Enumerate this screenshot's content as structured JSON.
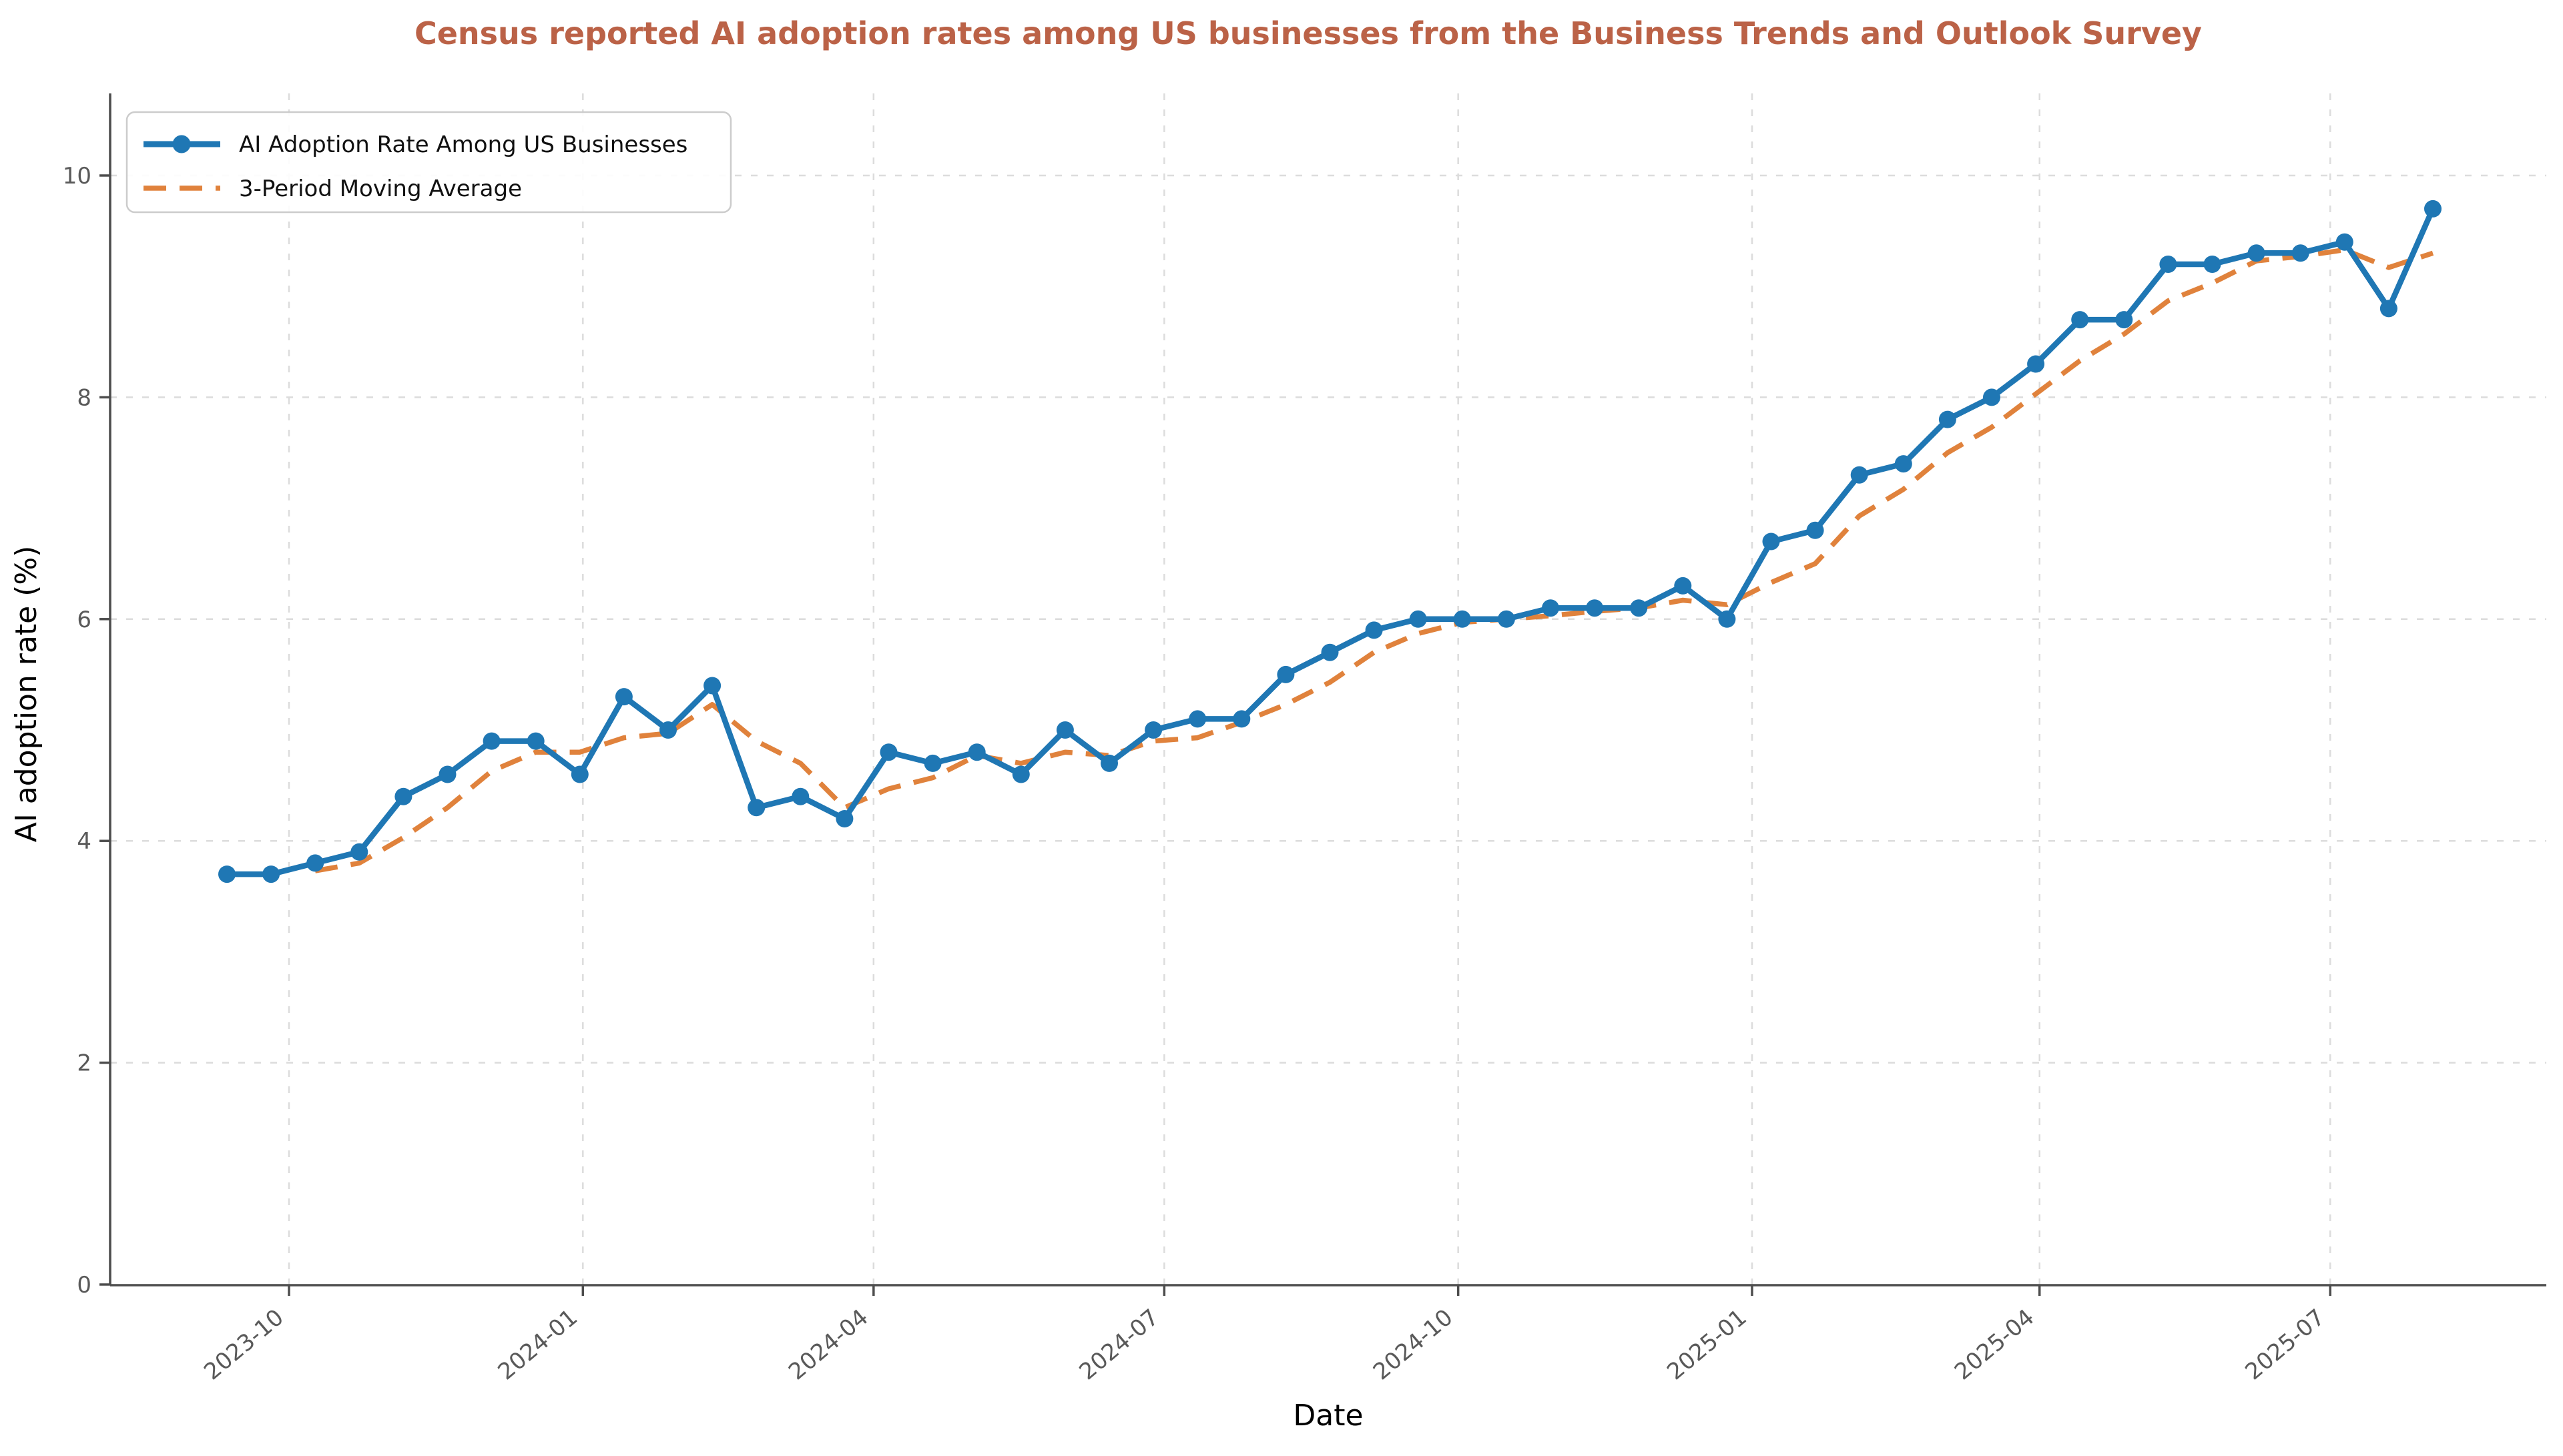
{
  "chart_data": {
    "type": "line",
    "title": "Census reported AI adoption rates among US businesses from the Business Trends and Outlook Survey",
    "title_color": "#bb6247",
    "xlabel": "Date",
    "ylabel": "AI adoption rate (%)",
    "ylim": [
      0,
      10.7
    ],
    "grid": true,
    "grid_style": "light-dashed",
    "legend_position": "upper-left",
    "x_tick_labels": [
      "2023-10",
      "2024-01",
      "2024-04",
      "2024-07",
      "2024-10",
      "2025-01",
      "2025-04",
      "2025-07"
    ],
    "y_ticks": [
      0,
      2,
      4,
      6,
      8,
      10
    ],
    "dates": [
      "2023-09-11",
      "2023-09-25",
      "2023-10-09",
      "2023-10-23",
      "2023-11-06",
      "2023-11-20",
      "2023-12-04",
      "2023-12-18",
      "2024-01-01",
      "2024-01-15",
      "2024-01-29",
      "2024-02-12",
      "2024-02-26",
      "2024-03-11",
      "2024-03-25",
      "2024-04-08",
      "2024-04-22",
      "2024-05-06",
      "2024-05-20",
      "2024-06-03",
      "2024-06-17",
      "2024-07-01",
      "2024-07-15",
      "2024-07-29",
      "2024-08-12",
      "2024-08-26",
      "2024-09-09",
      "2024-09-23",
      "2024-10-07",
      "2024-10-21",
      "2024-11-04",
      "2024-11-18",
      "2024-12-02",
      "2024-12-16",
      "2024-12-30",
      "2025-01-13",
      "2025-01-27",
      "2025-02-10",
      "2025-02-24",
      "2025-03-10",
      "2025-03-24",
      "2025-04-07",
      "2025-04-21",
      "2025-05-05",
      "2025-05-19",
      "2025-06-02",
      "2025-06-16",
      "2025-06-30",
      "2025-07-14",
      "2025-07-28",
      "2025-08-11"
    ],
    "series": [
      {
        "name": "AI Adoption Rate Among US Businesses",
        "color": "#1f77b4",
        "style": "solid-with-markers",
        "values": [
          3.7,
          3.7,
          3.8,
          3.9,
          4.4,
          4.6,
          4.9,
          4.9,
          4.6,
          5.3,
          5.0,
          5.4,
          4.3,
          4.4,
          4.2,
          4.8,
          4.7,
          4.8,
          4.6,
          5.0,
          4.7,
          5.0,
          5.1,
          5.1,
          5.5,
          5.7,
          5.9,
          6.0,
          6.0,
          6.0,
          6.1,
          6.1,
          6.1,
          6.3,
          6.0,
          6.7,
          6.8,
          7.3,
          7.4,
          7.8,
          8.0,
          8.3,
          8.7,
          8.7,
          9.2,
          9.2,
          9.3,
          9.3,
          9.4,
          8.8,
          9.7
        ]
      },
      {
        "name": "3-Period Moving Average",
        "color": "#e0823c",
        "style": "dashed",
        "values": [
          null,
          null,
          3.73,
          3.8,
          4.03,
          4.3,
          4.63,
          4.8,
          4.8,
          4.93,
          4.97,
          5.23,
          4.9,
          4.7,
          4.3,
          4.47,
          4.57,
          4.77,
          4.7,
          4.8,
          4.77,
          4.9,
          4.93,
          5.07,
          5.23,
          5.43,
          5.7,
          5.87,
          5.97,
          6.0,
          6.03,
          6.07,
          6.1,
          6.17,
          6.13,
          6.33,
          6.5,
          6.93,
          7.17,
          7.5,
          7.73,
          8.03,
          8.33,
          8.57,
          8.87,
          9.03,
          9.23,
          9.27,
          9.33,
          9.17,
          9.3
        ]
      }
    ],
    "axis_colors": {
      "spine": "#4d4d4d",
      "tick": "#4d4d4d",
      "tick_label": "#595959",
      "gridline": "#dcdcdc"
    }
  }
}
